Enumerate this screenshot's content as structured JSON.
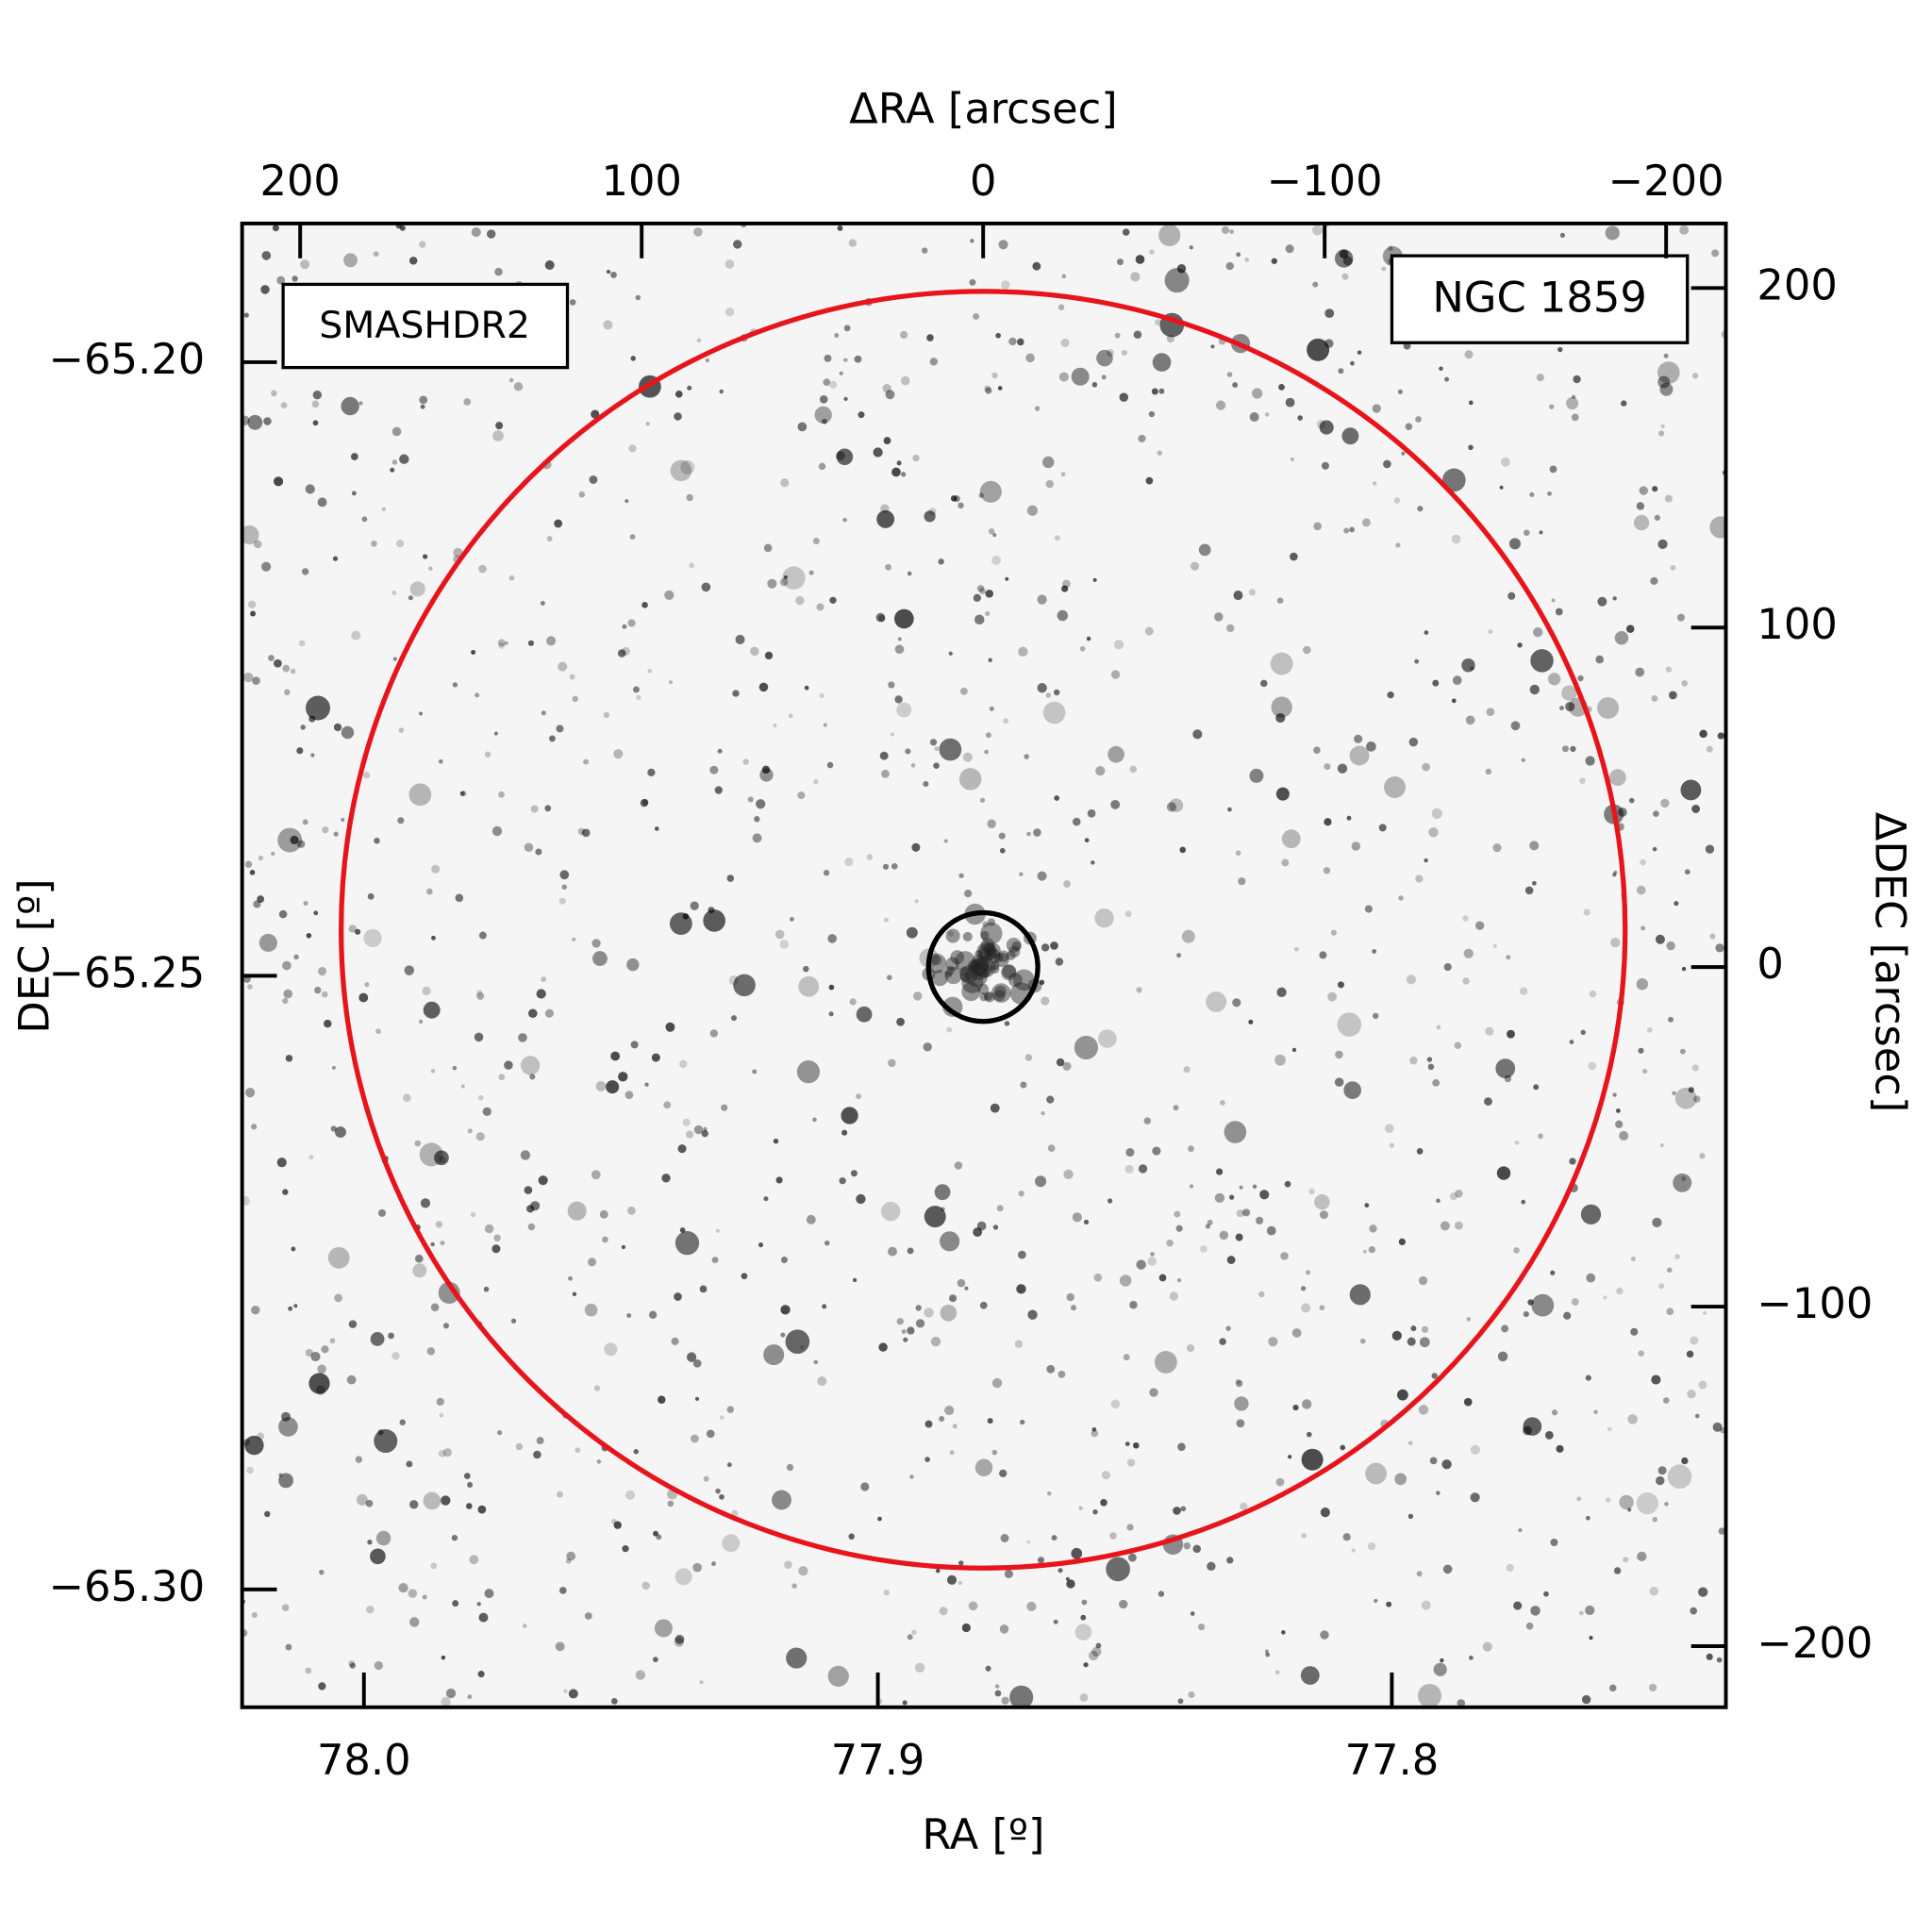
{
  "chart_data": {
    "type": "image",
    "title": "NGC 1859",
    "survey_label": "SMASHDR2",
    "survey_color": "#e8141c",
    "x_label": "RA [º]",
    "y_label": "DEC [º]",
    "x2_label": "ΔRA [arcsec]",
    "y2_label": "ΔDEC [arcsec]",
    "xlim": [
      78.0237,
      77.735
    ],
    "ylim": [
      -65.3096,
      -65.1887
    ],
    "xticks": [
      {
        "value": 78.0,
        "label": "78.0"
      },
      77.9,
      77.8
    ],
    "yticks": [
      {
        "value": -65.2,
        "label": "−65.20"
      },
      {
        "value": -65.25,
        "label": "−65.25"
      },
      {
        "value": -65.3,
        "label": "−65.30"
      }
    ],
    "x2lim": [
      217,
      -217.5
    ],
    "y2lim": [
      -218,
      219
    ],
    "x2ticks": [
      200,
      100,
      0,
      {
        "value": -100,
        "label": "−100"
      },
      {
        "value": -200,
        "label": "−200"
      }
    ],
    "y2ticks": [
      200,
      100,
      0,
      {
        "value": -100,
        "label": "−100"
      },
      {
        "value": -200,
        "label": "−200"
      }
    ],
    "circles": [
      {
        "center": [
          0,
          11
        ],
        "radius": 188,
        "color": "#e8141c"
      },
      {
        "center": [
          0,
          0
        ],
        "radius": 16,
        "color": "#000000"
      }
    ]
  }
}
